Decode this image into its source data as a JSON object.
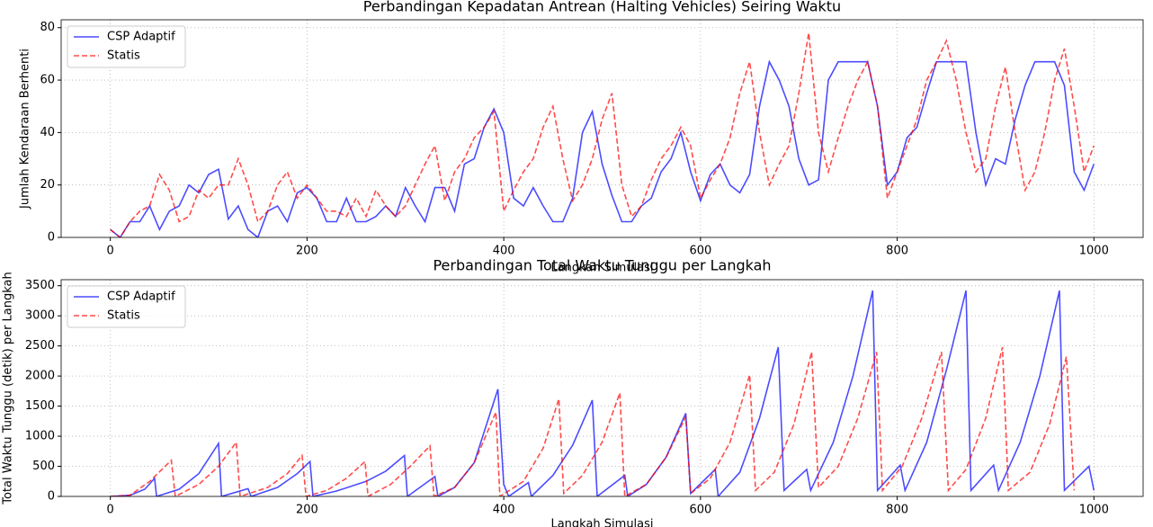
{
  "chart_data": [
    {
      "type": "line",
      "title": "Perbandingan Kepadatan Antrean (Halting Vehicles) Seiring Waktu",
      "x_label": "Langkah Simulasi",
      "y_label": "Jumlah Kendaraan Berhenti",
      "x": [
        0,
        10,
        20,
        30,
        40,
        50,
        60,
        70,
        80,
        90,
        100,
        110,
        120,
        130,
        140,
        150,
        160,
        170,
        180,
        190,
        200,
        210,
        220,
        230,
        240,
        250,
        260,
        270,
        280,
        290,
        300,
        310,
        320,
        330,
        340,
        350,
        360,
        370,
        380,
        390,
        400,
        410,
        420,
        430,
        440,
        450,
        460,
        470,
        480,
        490,
        500,
        510,
        520,
        530,
        540,
        550,
        560,
        570,
        580,
        590,
        600,
        610,
        620,
        630,
        640,
        650,
        660,
        670,
        680,
        690,
        700,
        710,
        720,
        730,
        740,
        750,
        760,
        770,
        780,
        790,
        800,
        810,
        820,
        830,
        840,
        850,
        860,
        870,
        880,
        890,
        900,
        910,
        920,
        930,
        940,
        950,
        960,
        970,
        980,
        990,
        1000
      ],
      "series": [
        {
          "name": "CSP Adaptif",
          "color": "#0000ff",
          "dash": false,
          "values": [
            3,
            0,
            6,
            6,
            12,
            3,
            10,
            12,
            20,
            17,
            24,
            26,
            7,
            12,
            3,
            0,
            10,
            12,
            6,
            17,
            19,
            15,
            6,
            6,
            15,
            6,
            6,
            8,
            12,
            8,
            19,
            12,
            6,
            19,
            19,
            10,
            28,
            30,
            42,
            49,
            40,
            15,
            12,
            19,
            12,
            6,
            6,
            15,
            40,
            48,
            28,
            16,
            6,
            6,
            12,
            15,
            25,
            30,
            40,
            25,
            14,
            24,
            28,
            20,
            17,
            24,
            50,
            67,
            60,
            50,
            30,
            20,
            22,
            60,
            67,
            67,
            67,
            67,
            50,
            20,
            25,
            38,
            42,
            55,
            67,
            67,
            67,
            67,
            40,
            20,
            30,
            28,
            45,
            58,
            67,
            67,
            67,
            58,
            25,
            18,
            28
          ]
        },
        {
          "name": "Statis",
          "color": "#ff0000",
          "dash": true,
          "values": [
            3,
            0,
            6,
            10,
            12,
            24,
            18,
            6,
            8,
            18,
            15,
            20,
            20,
            30,
            20,
            6,
            10,
            20,
            25,
            15,
            20,
            15,
            10,
            10,
            8,
            15,
            8,
            18,
            12,
            8,
            12,
            20,
            28,
            35,
            14,
            25,
            30,
            38,
            42,
            48,
            10,
            18,
            25,
            30,
            42,
            50,
            30,
            14,
            20,
            30,
            45,
            55,
            20,
            8,
            12,
            22,
            30,
            35,
            42,
            35,
            15,
            22,
            28,
            38,
            55,
            67,
            40,
            20,
            28,
            35,
            55,
            78,
            40,
            25,
            38,
            50,
            60,
            67,
            50,
            15,
            25,
            35,
            45,
            60,
            67,
            75,
            60,
            40,
            25,
            30,
            50,
            65,
            40,
            18,
            25,
            40,
            60,
            72,
            50,
            25,
            35
          ]
        }
      ],
      "xlim": [
        -50,
        1050
      ],
      "ylim": [
        0,
        83
      ],
      "xticks": [
        0,
        200,
        400,
        600,
        800,
        1000
      ],
      "yticks": [
        0,
        20,
        40,
        60,
        80
      ],
      "grid": true,
      "legend": "upper left"
    },
    {
      "type": "line",
      "title": "Perbandingan Total Waktu Tunggu per Langkah",
      "x_label": "Langkah Simulasi",
      "y_label": "Total Waktu Tunggu (detik) per Langkah",
      "series": [
        {
          "name": "CSP Adaptif",
          "color": "#0000ff",
          "dash": false,
          "x": [
            0,
            20,
            35,
            45,
            47,
            70,
            90,
            110,
            113,
            140,
            143,
            170,
            190,
            203,
            206,
            230,
            260,
            280,
            299,
            302,
            330,
            333,
            350,
            370,
            394,
            400,
            405,
            425,
            428,
            450,
            470,
            490,
            495,
            523,
            526,
            545,
            565,
            585,
            590,
            615,
            618,
            640,
            660,
            679,
            685,
            708,
            712,
            735,
            755,
            775,
            780,
            803,
            808,
            830,
            850,
            870,
            875,
            898,
            903,
            925,
            945,
            965,
            970,
            995,
            1000
          ],
          "values": [
            0,
            20,
            120,
            300,
            0,
            120,
            380,
            880,
            0,
            130,
            0,
            150,
            380,
            580,
            0,
            90,
            250,
            420,
            680,
            0,
            330,
            0,
            150,
            560,
            1780,
            200,
            0,
            230,
            0,
            350,
            850,
            1600,
            0,
            350,
            0,
            200,
            650,
            1380,
            50,
            450,
            0,
            400,
            1300,
            2480,
            100,
            450,
            100,
            900,
            2000,
            3420,
            100,
            520,
            100,
            900,
            2100,
            3420,
            100,
            520,
            100,
            900,
            2000,
            3420,
            100,
            500,
            100
          ]
        },
        {
          "name": "Statis",
          "color": "#ff0000",
          "dash": true,
          "x": [
            0,
            20,
            40,
            62,
            66,
            90,
            110,
            128,
            132,
            160,
            180,
            195,
            199,
            220,
            240,
            259,
            262,
            285,
            305,
            325,
            329,
            350,
            370,
            392,
            396,
            420,
            440,
            456,
            461,
            480,
            500,
            518,
            523,
            545,
            565,
            585,
            590,
            610,
            630,
            650,
            656,
            675,
            695,
            713,
            720,
            740,
            760,
            779,
            785,
            805,
            825,
            845,
            852,
            870,
            890,
            907,
            913,
            935,
            955,
            972,
            980
          ],
          "values": [
            0,
            20,
            250,
            600,
            0,
            200,
            500,
            900,
            0,
            150,
            380,
            680,
            0,
            100,
            300,
            580,
            0,
            200,
            500,
            840,
            0,
            150,
            560,
            1400,
            0,
            250,
            800,
            1620,
            50,
            350,
            900,
            1720,
            0,
            200,
            650,
            1320,
            50,
            300,
            900,
            2020,
            100,
            400,
            1200,
            2400,
            150,
            500,
            1300,
            2400,
            100,
            500,
            1300,
            2400,
            100,
            450,
            1300,
            2480,
            100,
            400,
            1200,
            2320,
            100
          ]
        }
      ],
      "xlim": [
        -50,
        1050
      ],
      "ylim": [
        0,
        3600
      ],
      "xticks": [
        0,
        200,
        400,
        600,
        800,
        1000
      ],
      "yticks": [
        0,
        500,
        1000,
        1500,
        2000,
        2500,
        3000,
        3500
      ],
      "grid": true,
      "legend": "upper left"
    }
  ]
}
